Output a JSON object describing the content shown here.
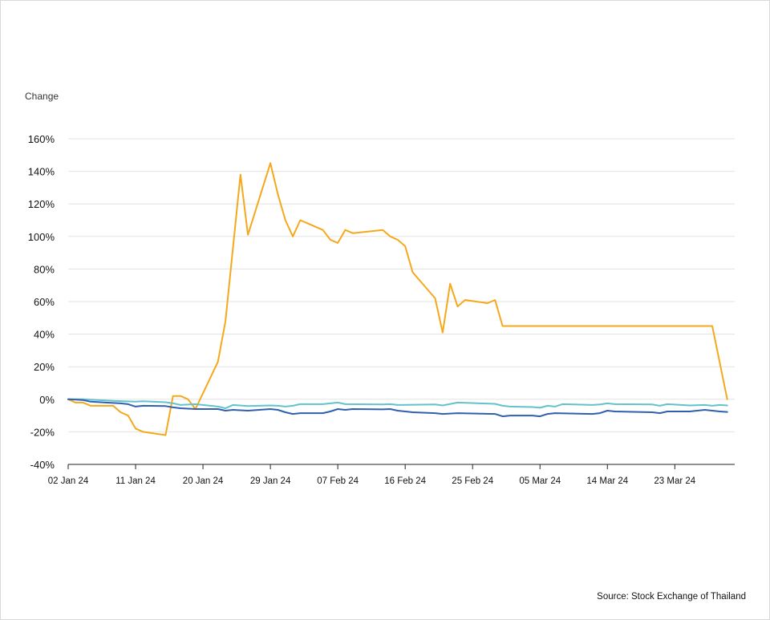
{
  "chart_data": {
    "type": "line",
    "ylabel": "Change",
    "source": "Source: Stock Exchange of Thailand",
    "grid": true,
    "ylim": [
      -40,
      160
    ],
    "y_ticks": [
      "160%",
      "140%",
      "120%",
      "100%",
      "80%",
      "60%",
      "40%",
      "20%",
      "0%",
      "-20%",
      "-40%"
    ],
    "y_tick_values": [
      160,
      140,
      120,
      100,
      80,
      60,
      40,
      20,
      0,
      -20,
      -40
    ],
    "x_ticks": [
      "02 Jan 24",
      "11 Jan 24",
      "20 Jan 24",
      "29 Jan 24",
      "07 Feb 24",
      "16 Feb 24",
      "25 Feb 24",
      "05 Mar 24",
      "14 Mar 24",
      "23 Mar 24"
    ],
    "x_tick_values": [
      "2024-01-02",
      "2024-01-11",
      "2024-01-20",
      "2024-01-29",
      "2024-02-07",
      "2024-02-16",
      "2024-02-25",
      "2024-03-05",
      "2024-03-14",
      "2024-03-23"
    ],
    "x_range": [
      "2024-01-02",
      "2024-03-31"
    ],
    "series": [
      {
        "color": "#f5a81c",
        "points": [
          [
            "2024-01-02",
            0
          ],
          [
            "2024-01-03",
            -2
          ],
          [
            "2024-01-04",
            -2
          ],
          [
            "2024-01-05",
            -4
          ],
          [
            "2024-01-08",
            -4
          ],
          [
            "2024-01-09",
            -8
          ],
          [
            "2024-01-10",
            -10
          ],
          [
            "2024-01-11",
            -18
          ],
          [
            "2024-01-12",
            -20
          ],
          [
            "2024-01-15",
            -22
          ],
          [
            "2024-01-16",
            2
          ],
          [
            "2024-01-17",
            2
          ],
          [
            "2024-01-18",
            0
          ],
          [
            "2024-01-19",
            -6
          ],
          [
            "2024-01-22",
            23
          ],
          [
            "2024-01-23",
            48
          ],
          [
            "2024-01-25",
            138
          ],
          [
            "2024-01-26",
            101
          ],
          [
            "2024-01-29",
            145
          ],
          [
            "2024-01-30",
            126
          ],
          [
            "2024-01-31",
            110
          ],
          [
            "2024-02-01",
            100
          ],
          [
            "2024-02-02",
            110
          ],
          [
            "2024-02-05",
            104
          ],
          [
            "2024-02-06",
            98
          ],
          [
            "2024-02-07",
            96
          ],
          [
            "2024-02-08",
            104
          ],
          [
            "2024-02-09",
            102
          ],
          [
            "2024-02-13",
            104
          ],
          [
            "2024-02-14",
            100
          ],
          [
            "2024-02-15",
            98
          ],
          [
            "2024-02-16",
            94
          ],
          [
            "2024-02-17",
            78
          ],
          [
            "2024-02-20",
            62
          ],
          [
            "2024-02-21",
            41
          ],
          [
            "2024-02-22",
            71
          ],
          [
            "2024-02-23",
            57
          ],
          [
            "2024-02-24",
            61
          ],
          [
            "2024-02-27",
            59
          ],
          [
            "2024-02-28",
            61
          ],
          [
            "2024-02-29",
            45
          ],
          [
            "2024-03-28",
            45
          ],
          [
            "2024-03-30",
            0
          ]
        ]
      },
      {
        "color": "#62c3cc",
        "points": [
          [
            "2024-01-02",
            0
          ],
          [
            "2024-01-04",
            0
          ],
          [
            "2024-01-08",
            -1
          ],
          [
            "2024-01-11",
            -1.5
          ],
          [
            "2024-01-12",
            -1.2
          ],
          [
            "2024-01-15",
            -1.8
          ],
          [
            "2024-01-16",
            -2.5
          ],
          [
            "2024-01-17",
            -3.5
          ],
          [
            "2024-01-19",
            -3
          ],
          [
            "2024-01-22",
            -4.5
          ],
          [
            "2024-01-23",
            -5.5
          ],
          [
            "2024-01-24",
            -3.5
          ],
          [
            "2024-01-26",
            -4.2
          ],
          [
            "2024-01-29",
            -3.8
          ],
          [
            "2024-01-30",
            -4
          ],
          [
            "2024-01-31",
            -4.5
          ],
          [
            "2024-02-01",
            -4
          ],
          [
            "2024-02-02",
            -3
          ],
          [
            "2024-02-05",
            -3
          ],
          [
            "2024-02-06",
            -2.5
          ],
          [
            "2024-02-07",
            -2
          ],
          [
            "2024-02-08",
            -3
          ],
          [
            "2024-02-13",
            -3.2
          ],
          [
            "2024-02-14",
            -3
          ],
          [
            "2024-02-15",
            -3.5
          ],
          [
            "2024-02-20",
            -3.2
          ],
          [
            "2024-02-21",
            -3.8
          ],
          [
            "2024-02-23",
            -2
          ],
          [
            "2024-02-26",
            -2.5
          ],
          [
            "2024-02-28",
            -2.8
          ],
          [
            "2024-02-29",
            -4
          ],
          [
            "2024-03-01",
            -4.5
          ],
          [
            "2024-03-04",
            -4.8
          ],
          [
            "2024-03-05",
            -5.2
          ],
          [
            "2024-03-06",
            -4
          ],
          [
            "2024-03-07",
            -4.5
          ],
          [
            "2024-03-08",
            -3
          ],
          [
            "2024-03-12",
            -3.5
          ],
          [
            "2024-03-13",
            -3.2
          ],
          [
            "2024-03-14",
            -2.5
          ],
          [
            "2024-03-15",
            -3
          ],
          [
            "2024-03-20",
            -3.2
          ],
          [
            "2024-03-21",
            -4
          ],
          [
            "2024-03-22",
            -3
          ],
          [
            "2024-03-25",
            -3.8
          ],
          [
            "2024-03-27",
            -3.5
          ],
          [
            "2024-03-28",
            -4
          ],
          [
            "2024-03-29",
            -3.5
          ],
          [
            "2024-03-30",
            -3.8
          ]
        ]
      },
      {
        "color": "#2f5fae",
        "points": [
          [
            "2024-01-02",
            0
          ],
          [
            "2024-01-04",
            -0.5
          ],
          [
            "2024-01-05",
            -1.5
          ],
          [
            "2024-01-09",
            -2.5
          ],
          [
            "2024-01-10",
            -3
          ],
          [
            "2024-01-11",
            -4.5
          ],
          [
            "2024-01-12",
            -4
          ],
          [
            "2024-01-15",
            -4.2
          ],
          [
            "2024-01-16",
            -5
          ],
          [
            "2024-01-17",
            -5.5
          ],
          [
            "2024-01-19",
            -6
          ],
          [
            "2024-01-22",
            -6
          ],
          [
            "2024-01-23",
            -7
          ],
          [
            "2024-01-24",
            -6.5
          ],
          [
            "2024-01-26",
            -7
          ],
          [
            "2024-01-29",
            -6
          ],
          [
            "2024-01-30",
            -6.5
          ],
          [
            "2024-01-31",
            -8
          ],
          [
            "2024-02-01",
            -9
          ],
          [
            "2024-02-02",
            -8.5
          ],
          [
            "2024-02-05",
            -8.5
          ],
          [
            "2024-02-06",
            -7.5
          ],
          [
            "2024-02-07",
            -6
          ],
          [
            "2024-02-08",
            -6.5
          ],
          [
            "2024-02-09",
            -6
          ],
          [
            "2024-02-13",
            -6.2
          ],
          [
            "2024-02-14",
            -6
          ],
          [
            "2024-02-15",
            -7
          ],
          [
            "2024-02-16",
            -7.5
          ],
          [
            "2024-02-17",
            -8
          ],
          [
            "2024-02-20",
            -8.5
          ],
          [
            "2024-02-21",
            -9
          ],
          [
            "2024-02-23",
            -8.5
          ],
          [
            "2024-02-28",
            -9
          ],
          [
            "2024-02-29",
            -10.5
          ],
          [
            "2024-03-01",
            -10
          ],
          [
            "2024-03-04",
            -10
          ],
          [
            "2024-03-05",
            -10.5
          ],
          [
            "2024-03-06",
            -9
          ],
          [
            "2024-03-07",
            -8.5
          ],
          [
            "2024-03-12",
            -9
          ],
          [
            "2024-03-13",
            -8.5
          ],
          [
            "2024-03-14",
            -7
          ],
          [
            "2024-03-15",
            -7.5
          ],
          [
            "2024-03-20",
            -8
          ],
          [
            "2024-03-21",
            -8.5
          ],
          [
            "2024-03-22",
            -7.5
          ],
          [
            "2024-03-25",
            -7.5
          ],
          [
            "2024-03-26",
            -7
          ],
          [
            "2024-03-27",
            -6.5
          ],
          [
            "2024-03-28",
            -7
          ],
          [
            "2024-03-29",
            -7.5
          ],
          [
            "2024-03-30",
            -7.8
          ]
        ]
      }
    ]
  }
}
